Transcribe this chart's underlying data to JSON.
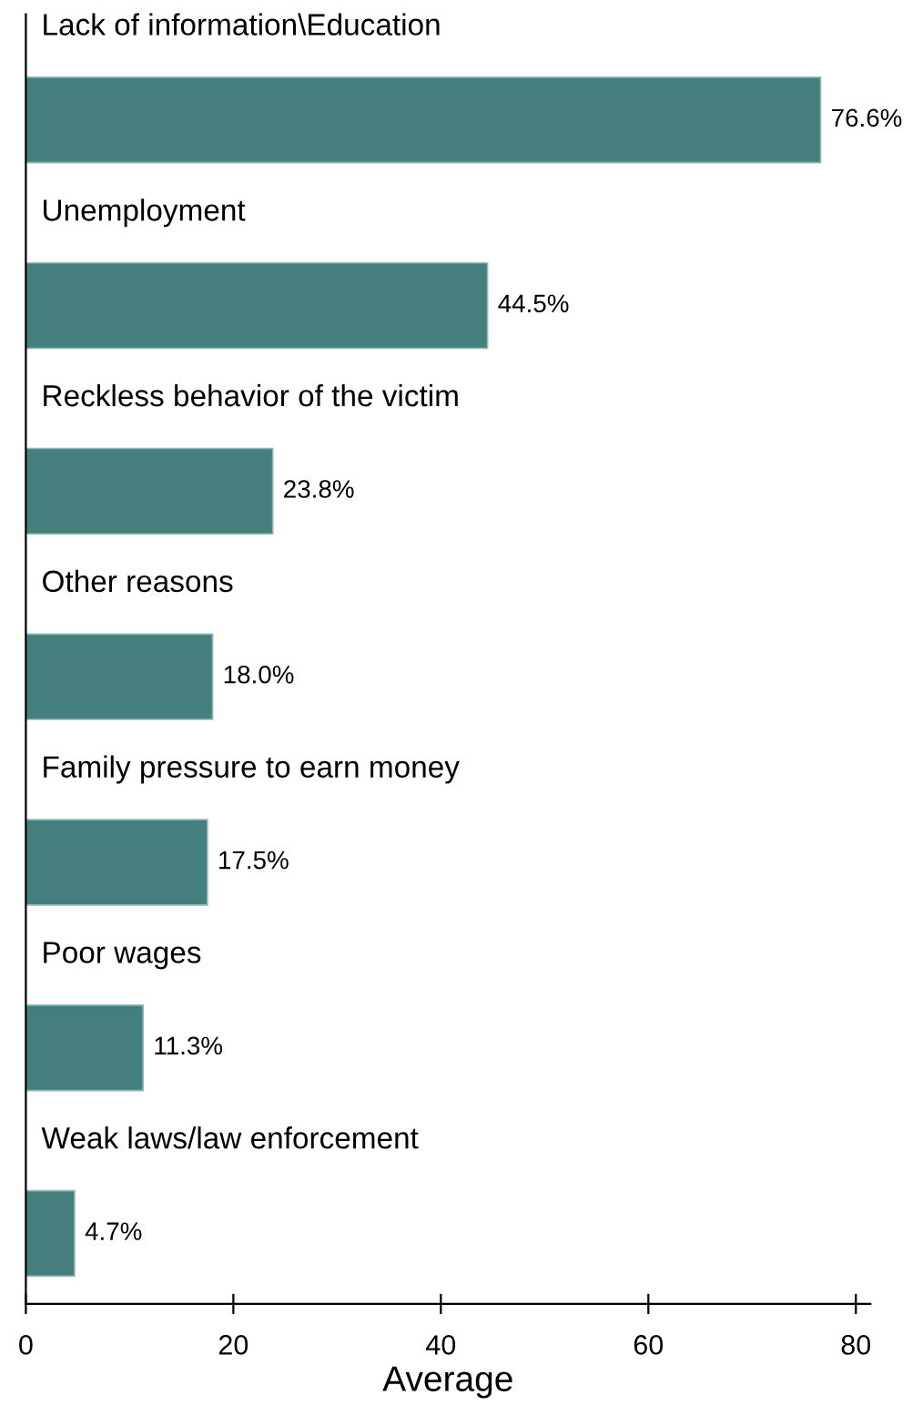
{
  "chart_data": {
    "type": "bar",
    "orientation": "horizontal",
    "xlabel": "Average",
    "categories": [
      "Lack of information\\Education",
      "Unemployment",
      "Reckless behavior of the victim",
      "Other reasons",
      "Family pressure to earn money",
      "Poor wages",
      "Weak laws/law enforcement"
    ],
    "values": [
      76.6,
      44.5,
      23.8,
      18.0,
      17.5,
      11.3,
      4.7
    ],
    "value_labels": [
      "76.6%",
      "44.5%",
      "23.8%",
      "18.0%",
      "17.5%",
      "11.3%",
      "4.7%"
    ],
    "color": "#457f7d",
    "xlim": [
      0,
      81.4
    ],
    "xticks": [
      0,
      20,
      40,
      60,
      80
    ],
    "grid": false,
    "legend": false
  }
}
